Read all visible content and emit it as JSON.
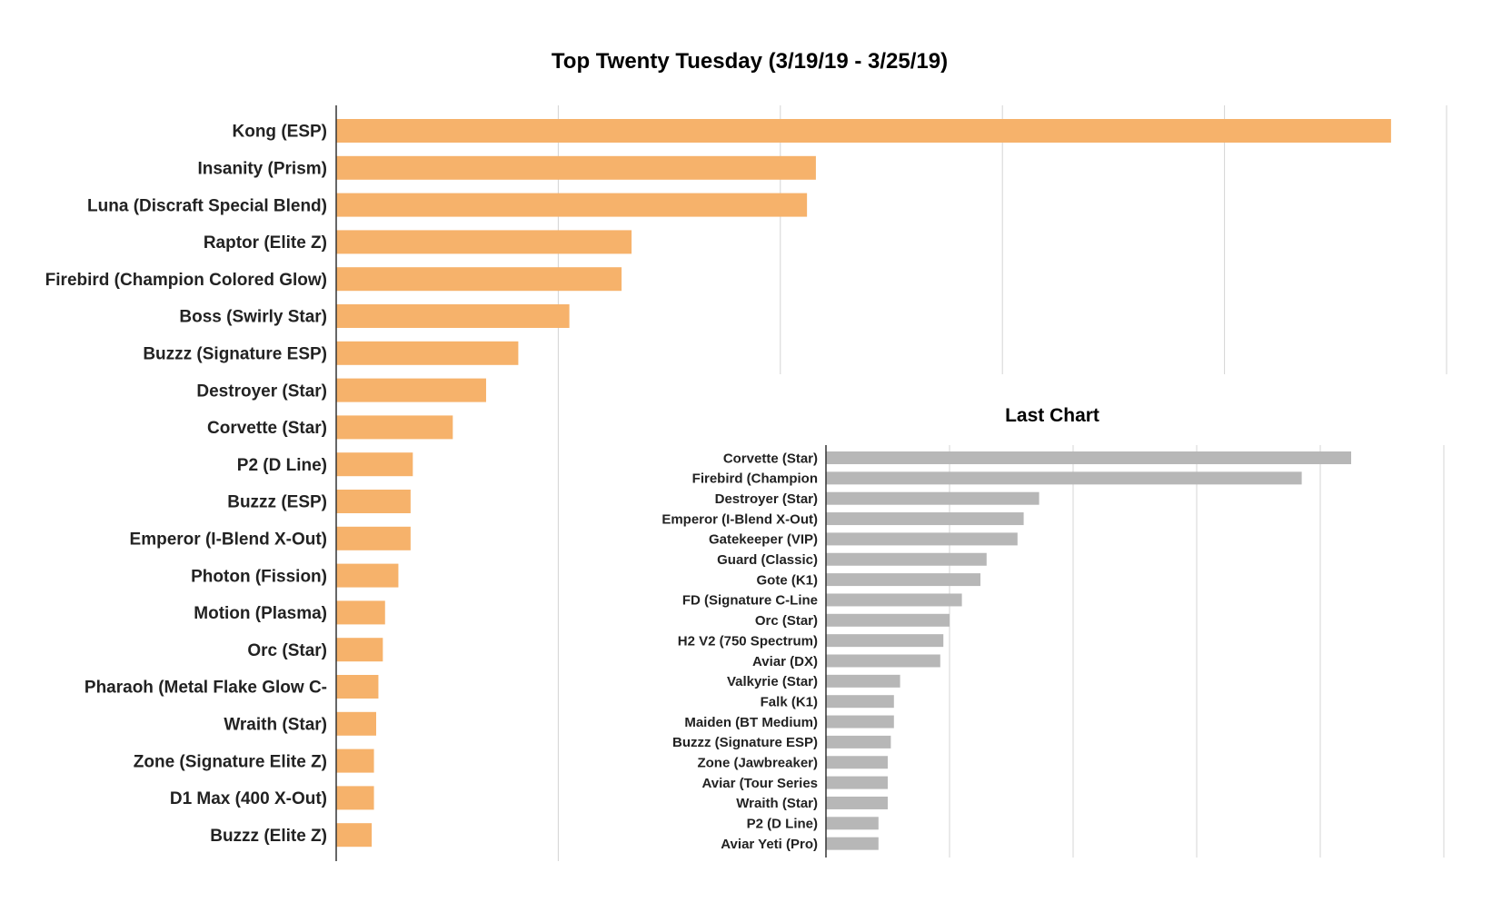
{
  "chart_data": [
    {
      "type": "bar",
      "orientation": "horizontal",
      "title": "Top Twenty Tuesday (3/19/19 - 3/25/19)",
      "color": "#f6b26b",
      "grid": true,
      "xlim": [
        0,
        100
      ],
      "categories": [
        "Kong (ESP)",
        "Insanity (Prism)",
        "Luna (Discraft Special Blend)",
        "Raptor (Elite Z)",
        "Firebird (Champion Colored Glow)",
        "Boss (Swirly Star)",
        "Buzzz (Signature ESP)",
        "Destroyer (Star)",
        "Corvette (Star)",
        "P2 (D Line)",
        "Buzzz (ESP)",
        "Emperor (I-Blend X-Out)",
        "Photon (Fission)",
        "Motion (Plasma)",
        "Orc (Star)",
        "Pharaoh (Metal Flake Glow C-",
        "Wraith (Star)",
        "Zone (Signature Elite Z)",
        "D1 Max (400 X-Out)",
        "Buzzz (Elite Z)"
      ],
      "values": [
        95,
        43.2,
        42.4,
        26.6,
        25.7,
        21,
        16.4,
        13.5,
        10.5,
        6.9,
        6.7,
        6.7,
        5.6,
        4.4,
        4.2,
        3.8,
        3.6,
        3.4,
        3.4,
        3.2
      ]
    },
    {
      "type": "bar",
      "orientation": "horizontal",
      "title": "Last Chart",
      "color": "#b7b7b7",
      "grid": true,
      "xlim": [
        0,
        100
      ],
      "categories": [
        "Corvette (Star)",
        "Firebird (Champion",
        "Destroyer (Star)",
        "Emperor (I-Blend X-Out)",
        "Gatekeeper (VIP)",
        "Guard (Classic)",
        "Gote (K1)",
        "FD (Signature C-Line",
        "Orc (Star)",
        "H2 V2 (750 Spectrum)",
        "Aviar (DX)",
        "Valkyrie (Star)",
        "Falk (K1)",
        "Maiden (BT Medium)",
        "Buzzz (Signature ESP)",
        "Zone (Jawbreaker)",
        "Aviar (Tour Series",
        "Wraith (Star)",
        "P2 (D Line)",
        "Aviar Yeti (Pro)"
      ],
      "values": [
        85,
        77,
        34.5,
        32,
        31,
        26,
        25,
        22,
        20,
        19,
        18.5,
        12,
        11,
        11,
        10.5,
        10,
        10,
        10,
        8.5,
        8.5
      ]
    }
  ]
}
